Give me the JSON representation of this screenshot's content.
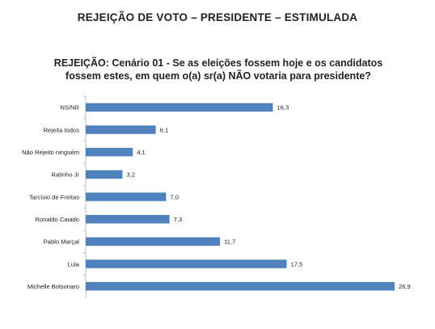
{
  "page": {
    "title": "REJEIÇÃO DE VOTO – PRESIDENTE – ESTIMULADA"
  },
  "chart_data": {
    "type": "bar",
    "orientation": "horizontal",
    "title_line1": "REJEIÇÃO: Cenário 01 - Se as eleições fossem hoje e os candidatos",
    "title_line2": "fossem estes, em quem o(a) sr(a) NÃO votaria para presidente?",
    "categories": [
      "NS/NR",
      "Rejeita todos",
      "Não Rejeito ninguém",
      "Ratinho Jr",
      "Tarcísio de Freitas",
      "Ronaldo Caiado",
      "Pablo Marçal",
      "Lula",
      "Michelle Bolsonaro"
    ],
    "values": [
      16.3,
      6.1,
      4.1,
      3.2,
      7.0,
      7.3,
      11.7,
      17.5,
      26.9
    ],
    "value_labels": [
      "16,3",
      "6,1",
      "4,1",
      "3,2",
      "7,0",
      "7,3",
      "11,7",
      "17,5",
      "26,9"
    ],
    "xlim": [
      0,
      30
    ],
    "grid": false,
    "legend": "none",
    "bar_color": "#4f81bd"
  }
}
